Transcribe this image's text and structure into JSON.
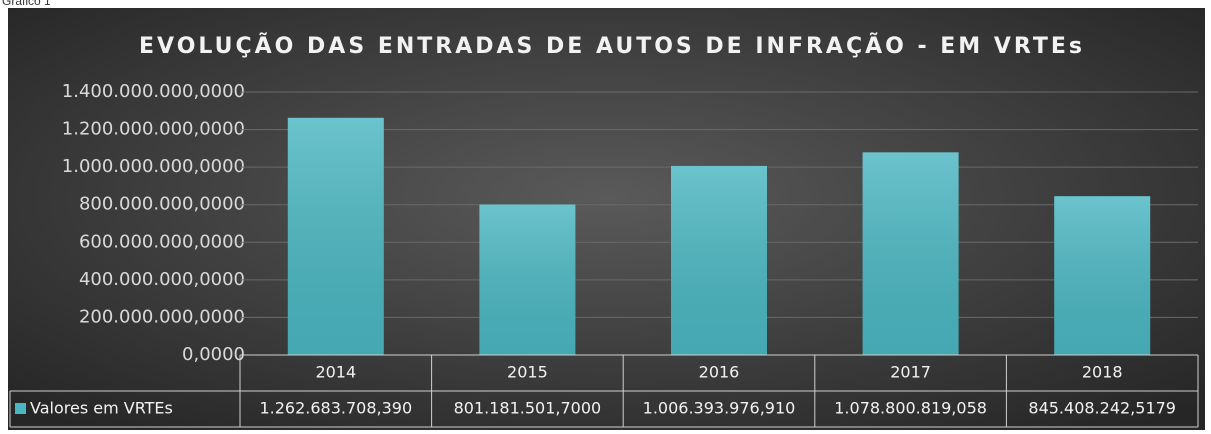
{
  "caption": "Gráfico 1",
  "chart_data": {
    "type": "bar",
    "title": "EVOLUÇÃO DAS ENTRADAS DE AUTOS DE INFRAÇÃO - EM VRTEs",
    "categories": [
      "2014",
      "2015",
      "2016",
      "2017",
      "2018"
    ],
    "series": [
      {
        "name": "Valores em VRTEs",
        "color": "#4bb7c2",
        "values": [
          1262683708.39,
          801181501.7,
          1006393976.91,
          1078800819.058,
          845408242.5179
        ],
        "value_labels": [
          "1.262.683.708,390",
          "801.181.501,7000",
          "1.006.393.976,910",
          "1.078.800.819,058",
          "845.408.242,5179"
        ]
      }
    ],
    "ylim": [
      0,
      1400000000
    ],
    "yticks": [
      {
        "value": 0,
        "label": "0,0000"
      },
      {
        "value": 200000000,
        "label": "200.000.000,0000"
      },
      {
        "value": 400000000,
        "label": "400.000.000,0000"
      },
      {
        "value": 600000000,
        "label": "600.000.000,0000"
      },
      {
        "value": 800000000,
        "label": "800.000.000,0000"
      },
      {
        "value": 1000000000,
        "label": "1.000.000.000,0000"
      },
      {
        "value": 1200000000,
        "label": "1.200.000.000,0000"
      },
      {
        "value": 1400000000,
        "label": "1.400.000.000,0000"
      }
    ],
    "grid": true,
    "data_table": true
  }
}
